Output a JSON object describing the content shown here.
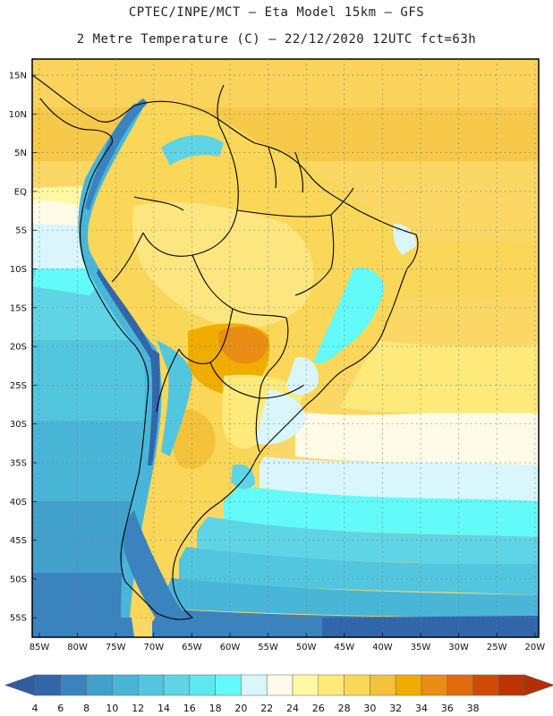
{
  "header": {
    "title_line1": "CPTEC/INPE/MCT –   Eta Model 15km – GFS",
    "title_line2": "2 Metre Temperature (C) – 22/12/2020 12UTC fct=63h"
  },
  "map": {
    "lat_labels": [
      "15N",
      "10N",
      "5N",
      "EQ",
      "5S",
      "10S",
      "15S",
      "20S",
      "25S",
      "30S",
      "35S",
      "40S",
      "45S",
      "50S",
      "55S"
    ],
    "lon_labels": [
      "85W",
      "80W",
      "75W",
      "70W",
      "65W",
      "60W",
      "55W",
      "50W",
      "45W",
      "40W",
      "35W",
      "30W",
      "25W",
      "20W"
    ]
  },
  "colorbar": {
    "labels": [
      "4",
      "6",
      "8",
      "10",
      "12",
      "14",
      "16",
      "18",
      "20",
      "22",
      "24",
      "26",
      "28",
      "30",
      "32",
      "34",
      "36",
      "38"
    ],
    "colors": [
      "#3266ab",
      "#3a83bf",
      "#42a0cc",
      "#49b6d8",
      "#52c6de",
      "#5fd4e4",
      "#5de8f0",
      "#63fafa",
      "#d8f6fb",
      "#fffbe8",
      "#fef8a5",
      "#fdea7a",
      "#fad758",
      "#f4c23a",
      "#f0ad00",
      "#ea8d14",
      "#e06a0c",
      "#d04a07",
      "#bd3306"
    ],
    "left_arrow_color": "#2f5da0",
    "right_arrow_color": "#b52e05"
  }
}
